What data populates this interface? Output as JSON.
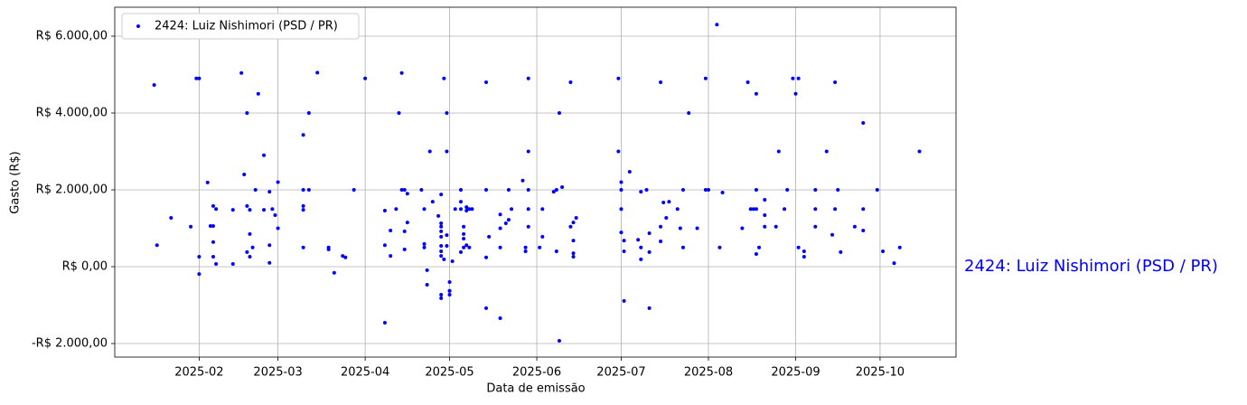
{
  "chart_data": {
    "type": "scatter",
    "xlabel": "Data de emissão",
    "ylabel": "Gasto (R$)",
    "annotation": "2424: Luiz Nishimori (PSD / PR)",
    "xlim": [
      "2025-01-02",
      "2025-10-28"
    ],
    "xticks": [
      {
        "value": "2025-02-01",
        "label": "2025-02"
      },
      {
        "value": "2025-03-01",
        "label": "2025-03"
      },
      {
        "value": "2025-04-01",
        "label": "2025-04"
      },
      {
        "value": "2025-05-01",
        "label": "2025-05"
      },
      {
        "value": "2025-06-01",
        "label": "2025-06"
      },
      {
        "value": "2025-07-01",
        "label": "2025-07"
      },
      {
        "value": "2025-08-01",
        "label": "2025-08"
      },
      {
        "value": "2025-09-01",
        "label": "2025-09"
      },
      {
        "value": "2025-10-01",
        "label": "2025-10"
      }
    ],
    "ylim": [
      -2353,
      6753
    ],
    "yticks": [
      {
        "value": -2000,
        "label": "-R$ 2.000,00"
      },
      {
        "value": 0,
        "label": "R$ 0,00"
      },
      {
        "value": 2000,
        "label": "R$ 2.000,00"
      },
      {
        "value": 4000,
        "label": "R$ 4.000,00"
      },
      {
        "value": 6000,
        "label": "R$ 6.000,00"
      }
    ],
    "grid": true,
    "legend": "upper left",
    "series": [
      {
        "name": "2424: Luiz Nishimori (PSD / PR)",
        "color": "#0000ff",
        "x": [
          "2025-01-16",
          "2025-01-17",
          "2025-01-22",
          "2025-01-29",
          "2025-01-31",
          "2025-02-01",
          "2025-02-01",
          "2025-02-01",
          "2025-02-04",
          "2025-02-05",
          "2025-02-06",
          "2025-02-06",
          "2025-02-06",
          "2025-02-06",
          "2025-02-07",
          "2025-02-07",
          "2025-02-13",
          "2025-02-13",
          "2025-02-16",
          "2025-02-17",
          "2025-02-18",
          "2025-02-18",
          "2025-02-19",
          "2025-02-18",
          "2025-02-19",
          "2025-02-19",
          "2025-02-20",
          "2025-02-21",
          "2025-02-22",
          "2025-02-24",
          "2025-02-24",
          "2025-02-26",
          "2025-02-26",
          "2025-02-26",
          "2025-02-27",
          "2025-02-28",
          "2025-03-01",
          "2025-03-01",
          "2025-03-10",
          "2025-03-10",
          "2025-03-10",
          "2025-03-10",
          "2025-03-10",
          "2025-03-12",
          "2025-03-12",
          "2025-03-15",
          "2025-03-19",
          "2025-03-19",
          "2025-03-21",
          "2025-03-24",
          "2025-03-25",
          "2025-03-28",
          "2025-04-01",
          "2025-04-08",
          "2025-04-08",
          "2025-04-08",
          "2025-04-10",
          "2025-04-10",
          "2025-04-12",
          "2025-04-13",
          "2025-04-14",
          "2025-04-14",
          "2025-04-15",
          "2025-04-15",
          "2025-04-15",
          "2025-04-16",
          "2025-04-16",
          "2025-04-21",
          "2025-04-22",
          "2025-04-22",
          "2025-04-22",
          "2025-04-23",
          "2025-04-23",
          "2025-04-24",
          "2025-04-25",
          "2025-04-27",
          "2025-04-28",
          "2025-04-28",
          "2025-04-28",
          "2025-04-28",
          "2025-04-28",
          "2025-04-28",
          "2025-04-28",
          "2025-04-28",
          "2025-04-29",
          "2025-04-28",
          "2025-04-28",
          "2025-04-29",
          "2025-04-30",
          "2025-04-30",
          "2025-04-30",
          "2025-04-30",
          "2025-05-01",
          "2025-05-01",
          "2025-05-01",
          "2025-05-01",
          "2025-05-02",
          "2025-05-03",
          "2025-05-05",
          "2025-05-05",
          "2025-05-05",
          "2025-05-05",
          "2025-05-06",
          "2025-05-06",
          "2025-05-06",
          "2025-05-06",
          "2025-05-07",
          "2025-05-07",
          "2025-05-07",
          "2025-05-08",
          "2025-05-08",
          "2025-05-09",
          "2025-05-14",
          "2025-05-15",
          "2025-05-14",
          "2025-05-14",
          "2025-05-14",
          "2025-05-19",
          "2025-05-19",
          "2025-05-19",
          "2025-05-19",
          "2025-05-21",
          "2025-05-22",
          "2025-05-22",
          "2025-05-23",
          "2025-05-27",
          "2025-05-28",
          "2025-05-28",
          "2025-05-29",
          "2025-05-29",
          "2025-05-29",
          "2025-05-29",
          "2025-05-29",
          "2025-06-02",
          "2025-06-03",
          "2025-06-03",
          "2025-06-07",
          "2025-06-08",
          "2025-06-08",
          "2025-06-09",
          "2025-06-09",
          "2025-06-10",
          "2025-06-13",
          "2025-06-13",
          "2025-06-14",
          "2025-06-15",
          "2025-06-14",
          "2025-06-14",
          "2025-06-14",
          "2025-06-30",
          "2025-06-30",
          "2025-07-01",
          "2025-07-01",
          "2025-07-01",
          "2025-07-01",
          "2025-07-02",
          "2025-07-02",
          "2025-07-02",
          "2025-07-04",
          "2025-07-07",
          "2025-07-08",
          "2025-07-08",
          "2025-07-08",
          "2025-07-10",
          "2025-07-11",
          "2025-07-11",
          "2025-07-11",
          "2025-07-15",
          "2025-07-15",
          "2025-07-15",
          "2025-07-16",
          "2025-07-17",
          "2025-07-18",
          "2025-07-21",
          "2025-07-23",
          "2025-07-22",
          "2025-07-23",
          "2025-07-25",
          "2025-07-28",
          "2025-07-31",
          "2025-07-31",
          "2025-08-01",
          "2025-08-04",
          "2025-08-05",
          "2025-08-06",
          "2025-08-13",
          "2025-08-15",
          "2025-08-16",
          "2025-08-17",
          "2025-08-18",
          "2025-08-18",
          "2025-08-18",
          "2025-08-18",
          "2025-08-19",
          "2025-08-21",
          "2025-08-21",
          "2025-08-21",
          "2025-08-25",
          "2025-08-26",
          "2025-08-28",
          "2025-08-29",
          "2025-08-31",
          "2025-09-01",
          "2025-09-02",
          "2025-09-02",
          "2025-09-04",
          "2025-09-04",
          "2025-09-08",
          "2025-09-08",
          "2025-09-08",
          "2025-09-12",
          "2025-09-14",
          "2025-09-15",
          "2025-09-15",
          "2025-09-16",
          "2025-09-17",
          "2025-09-22",
          "2025-09-25",
          "2025-09-25",
          "2025-09-25",
          "2025-09-30",
          "2025-10-02",
          "2025-10-06",
          "2025-10-08",
          "2025-10-15"
        ],
        "values": [
          4730,
          560,
          1270,
          1040,
          4900,
          4900,
          260,
          -190,
          2190,
          1060,
          1580,
          1060,
          640,
          260,
          70,
          1500,
          1480,
          70,
          5040,
          2400,
          4000,
          1580,
          1480,
          380,
          260,
          850,
          500,
          2000,
          4500,
          2900,
          1480,
          1950,
          560,
          100,
          1500,
          1340,
          2200,
          1000,
          3430,
          2000,
          1580,
          1480,
          500,
          4000,
          2000,
          5050,
          500,
          450,
          -160,
          280,
          240,
          2000,
          4900,
          1460,
          560,
          -1460,
          940,
          280,
          1500,
          4000,
          5040,
          2000,
          2000,
          920,
          450,
          1150,
          1900,
          2000,
          1500,
          590,
          500,
          -90,
          -470,
          3000,
          1690,
          1320,
          1880,
          1130,
          1040,
          920,
          780,
          540,
          400,
          280,
          190,
          -820,
          -730,
          4900,
          4000,
          3000,
          820,
          540,
          -400,
          -630,
          -730,
          -630,
          140,
          1500,
          380,
          1690,
          1500,
          2000,
          500,
          850,
          1040,
          730,
          1550,
          560,
          1460,
          1500,
          500,
          1500,
          240,
          780,
          2000,
          4800,
          -1080,
          -1340,
          500,
          1360,
          1000,
          1130,
          2000,
          1220,
          1500,
          2240,
          400,
          500,
          3000,
          2000,
          4900,
          1040,
          1500,
          500,
          780,
          1500,
          1950,
          2000,
          400,
          -1930,
          4000,
          2070,
          4800,
          1040,
          1150,
          1270,
          680,
          350,
          260,
          4900,
          3000,
          2200,
          2000,
          1500,
          890,
          680,
          400,
          -890,
          2470,
          700,
          1950,
          500,
          190,
          2000,
          870,
          380,
          -1080,
          4800,
          1040,
          660,
          1670,
          1270,
          1690,
          1500,
          2000,
          1000,
          500,
          4000,
          1000,
          2000,
          4900,
          2000,
          6300,
          500,
          1930,
          1000,
          4800,
          1500,
          1500,
          4500,
          2000,
          1500,
          330,
          500,
          1740,
          1340,
          1040,
          1040,
          3000,
          1500,
          2000,
          4900,
          4500,
          4900,
          500,
          400,
          260,
          2000,
          1500,
          1040,
          3000,
          830,
          4800,
          1500,
          2000,
          380,
          1040,
          3740,
          1500,
          940,
          2000,
          400,
          90,
          500,
          3000
        ]
      }
    ]
  }
}
